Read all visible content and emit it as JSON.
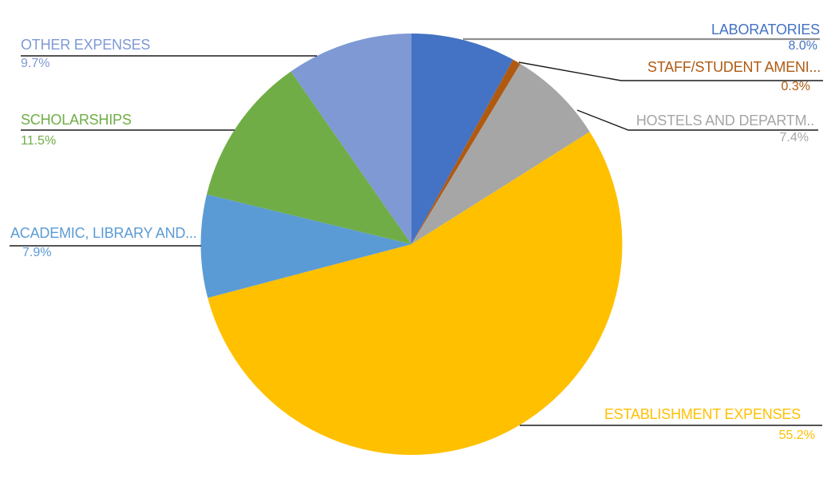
{
  "canvas": {
    "background": "#FFFFFF"
  },
  "chart_data": {
    "type": "pie",
    "title": "",
    "legend": "none",
    "direction": "clockwise",
    "start_angle_deg": 0,
    "label_style": "callout with leader lines: category name above rule, percentage below",
    "slices": [
      {
        "label": "LABORATORIES",
        "value": 8.0,
        "pct_label": "8.0%",
        "color": "#4472C4"
      },
      {
        "label": "STAFF/STUDENT AMENI...",
        "value": 0.3,
        "pct_label": "0.3%",
        "color": "#B05A11"
      },
      {
        "label": "HOSTELS AND DEPARTM..",
        "value": 7.4,
        "pct_label": "7.4%",
        "color": "#A6A6A6"
      },
      {
        "label": "ESTABLISHMENT EXPENSES",
        "value": 55.2,
        "pct_label": "55.2%",
        "color": "#FFC000"
      },
      {
        "label": "ACADEMIC, LIBRARY AND...",
        "value": 7.9,
        "pct_label": "7.9%",
        "color": "#5B9BD5"
      },
      {
        "label": "SCHOLARSHIPS",
        "value": 11.5,
        "pct_label": "11.5%",
        "color": "#70AD47"
      },
      {
        "label": "OTHER EXPENSES",
        "value": 9.7,
        "pct_label": "9.7%",
        "color": "#7E99D4"
      }
    ]
  }
}
